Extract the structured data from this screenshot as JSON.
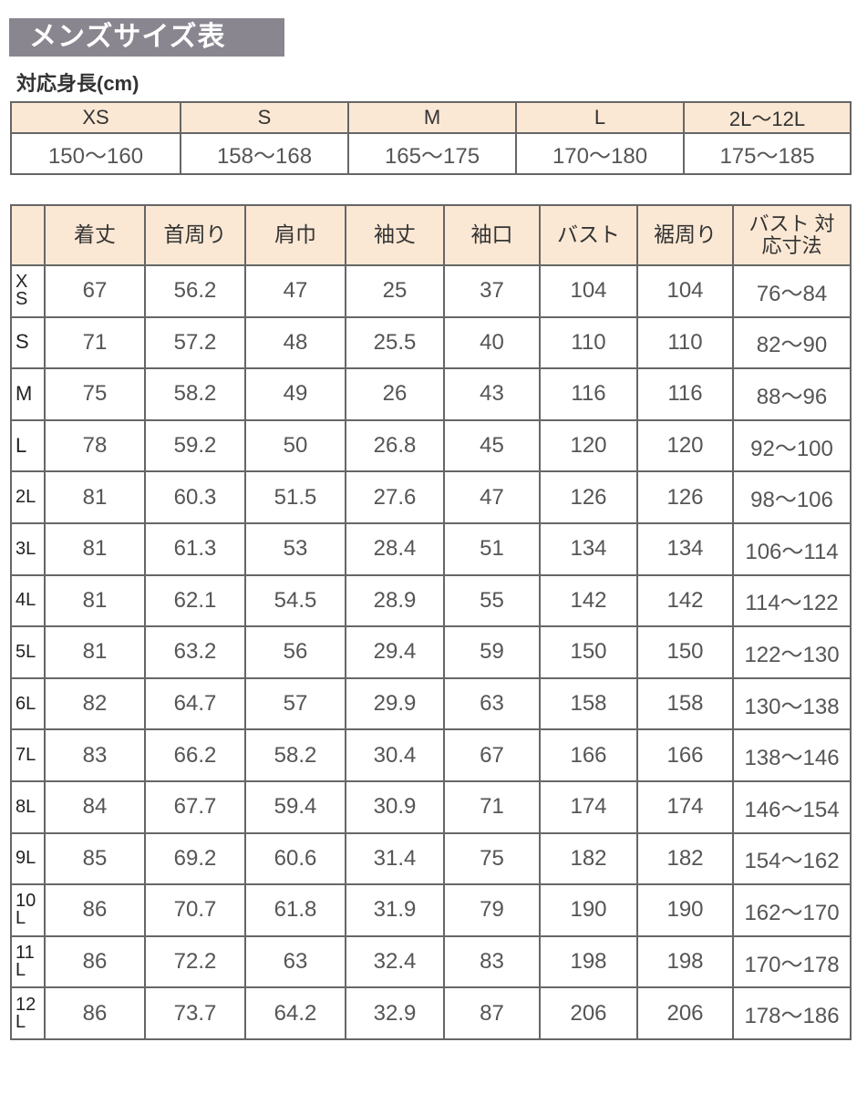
{
  "title": "メンズサイズ表",
  "height_table": {
    "label": "対応身長(cm)",
    "sizes": [
      "XS",
      "S",
      "M",
      "L",
      "2L〜12L"
    ],
    "ranges": [
      "150〜160",
      "158〜168",
      "165〜175",
      "170〜180",
      "175〜185"
    ]
  },
  "size_table": {
    "headers": [
      "",
      "着丈",
      "首周り",
      "肩巾",
      "袖丈",
      "袖口",
      "バスト",
      "裾周り",
      "バスト 対応寸法"
    ],
    "rows": [
      [
        "XS",
        "67",
        "56.2",
        "47",
        "25",
        "37",
        "104",
        "104",
        "76〜84"
      ],
      [
        "S",
        "71",
        "57.2",
        "48",
        "25.5",
        "40",
        "110",
        "110",
        "82〜90"
      ],
      [
        "M",
        "75",
        "58.2",
        "49",
        "26",
        "43",
        "116",
        "116",
        "88〜96"
      ],
      [
        "L",
        "78",
        "59.2",
        "50",
        "26.8",
        "45",
        "120",
        "120",
        "92〜100"
      ],
      [
        "2L",
        "81",
        "60.3",
        "51.5",
        "27.6",
        "47",
        "126",
        "126",
        "98〜106"
      ],
      [
        "3L",
        "81",
        "61.3",
        "53",
        "28.4",
        "51",
        "134",
        "134",
        "106〜114"
      ],
      [
        "4L",
        "81",
        "62.1",
        "54.5",
        "28.9",
        "55",
        "142",
        "142",
        "114〜122"
      ],
      [
        "5L",
        "81",
        "63.2",
        "56",
        "29.4",
        "59",
        "150",
        "150",
        "122〜130"
      ],
      [
        "6L",
        "82",
        "64.7",
        "57",
        "29.9",
        "63",
        "158",
        "158",
        "130〜138"
      ],
      [
        "7L",
        "83",
        "66.2",
        "58.2",
        "30.4",
        "67",
        "166",
        "166",
        "138〜146"
      ],
      [
        "8L",
        "84",
        "67.7",
        "59.4",
        "30.9",
        "71",
        "174",
        "174",
        "146〜154"
      ],
      [
        "9L",
        "85",
        "69.2",
        "60.6",
        "31.4",
        "75",
        "182",
        "182",
        "154〜162"
      ],
      [
        "10L",
        "86",
        "70.7",
        "61.8",
        "31.9",
        "79",
        "190",
        "190",
        "162〜170"
      ],
      [
        "11L",
        "86",
        "72.2",
        "63",
        "32.4",
        "83",
        "198",
        "198",
        "170〜178"
      ],
      [
        "12L",
        "86",
        "73.7",
        "64.2",
        "32.9",
        "87",
        "206",
        "206",
        "178〜186"
      ]
    ]
  },
  "colors": {
    "title_bg": "#8a8690",
    "header_bg": "#fbe8d4",
    "border": "#666666"
  }
}
